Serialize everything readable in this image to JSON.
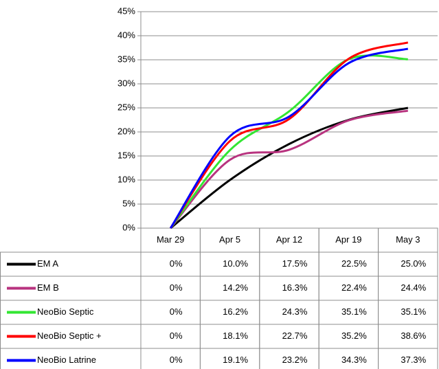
{
  "chart_data": {
    "type": "line",
    "categories": [
      "Mar 29",
      "Apr 5",
      "Apr 12",
      "Apr 19",
      "May 3"
    ],
    "series": [
      {
        "name": "EM A",
        "color": "#000000",
        "values": [
          0,
          10.0,
          17.5,
          22.5,
          25.0
        ],
        "value_labels": [
          "0%",
          "10.0%",
          "17.5%",
          "22.5%",
          "25.0%"
        ]
      },
      {
        "name": "EM B",
        "color": "#b8337f",
        "values": [
          0,
          14.2,
          16.3,
          22.4,
          24.4
        ],
        "value_labels": [
          "0%",
          "14.2%",
          "16.3%",
          "22.4%",
          "24.4%"
        ]
      },
      {
        "name": "NeoBio Septic",
        "color": "#33e633",
        "values": [
          0,
          16.2,
          24.3,
          35.1,
          35.1
        ],
        "value_labels": [
          "0%",
          "16.2%",
          "24.3%",
          "35.1%",
          "35.1%"
        ]
      },
      {
        "name": "NeoBio Septic +",
        "color": "#ff0000",
        "values": [
          0,
          18.1,
          22.7,
          35.2,
          38.6
        ],
        "value_labels": [
          "0%",
          "18.1%",
          "22.7%",
          "35.2%",
          "38.6%"
        ]
      },
      {
        "name": "NeoBio Latrine",
        "color": "#0000ff",
        "values": [
          0,
          19.1,
          23.2,
          34.3,
          37.3
        ],
        "value_labels": [
          "0%",
          "19.1%",
          "23.2%",
          "34.3%",
          "37.3%"
        ]
      }
    ],
    "ylim": [
      0,
      45
    ],
    "yticks": [
      {
        "value": 0,
        "label": "0%"
      },
      {
        "value": 5,
        "label": "5%"
      },
      {
        "value": 10,
        "label": "10%"
      },
      {
        "value": 15,
        "label": "15%"
      },
      {
        "value": 20,
        "label": "20%"
      },
      {
        "value": 25,
        "label": "25%"
      },
      {
        "value": 30,
        "label": "30%"
      },
      {
        "value": 35,
        "label": "35%"
      },
      {
        "value": 40,
        "label": "40%"
      },
      {
        "value": 45,
        "label": "45%"
      }
    ],
    "grid": true,
    "smooth": true
  }
}
